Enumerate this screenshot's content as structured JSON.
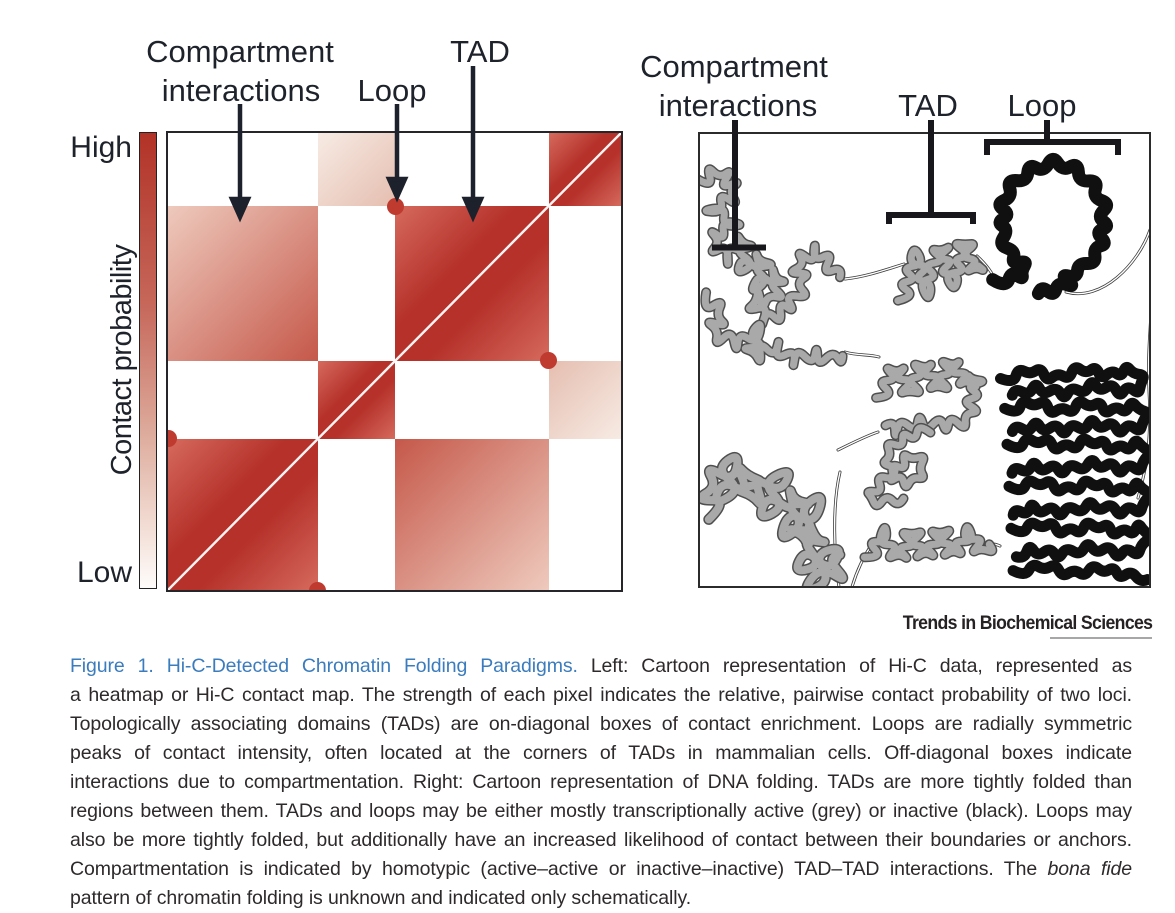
{
  "figure": {
    "left_panel": {
      "annotations": {
        "compartment_line1": "Compartment",
        "compartment_line2": "interactions",
        "loop": "Loop",
        "tad": "TAD"
      },
      "colorbar": {
        "high_label": "High",
        "low_label": "Low",
        "axis_label": "Contact probability",
        "gradient_top": "#b23227",
        "gradient_bottom": "#fefcfb"
      },
      "heatmap": {
        "segments": [
          {
            "id": "TAD1",
            "frac": 0.331
          },
          {
            "id": "TAD2",
            "frac": 0.171
          },
          {
            "id": "TAD3",
            "frac": 0.338
          },
          {
            "id": "TAD4",
            "frac": 0.16
          }
        ],
        "cells": [
          {
            "x": "TAD1",
            "y": "TAD1",
            "level": "high"
          },
          {
            "x": "TAD2",
            "y": "TAD2",
            "level": "high"
          },
          {
            "x": "TAD3",
            "y": "TAD3",
            "level": "high"
          },
          {
            "x": "TAD4",
            "y": "TAD4",
            "level": "high"
          },
          {
            "x": "TAD1",
            "y": "TAD3",
            "level": "medium"
          },
          {
            "x": "TAD3",
            "y": "TAD1",
            "level": "medium"
          },
          {
            "x": "TAD2",
            "y": "TAD4",
            "level": "low"
          },
          {
            "x": "TAD4",
            "y": "TAD2",
            "level": "low"
          }
        ],
        "levels": {
          "high": [
            "#b5312a",
            "#d66a5d"
          ],
          "medium": [
            "#c5584a",
            "#eecabd"
          ],
          "low": [
            "#e5beb0",
            "#f7ebe4"
          ]
        },
        "loops": [
          [
            0,
            0.331
          ],
          [
            0.331,
            0
          ],
          [
            0.502,
            0.84
          ],
          [
            0.84,
            0.502
          ]
        ],
        "loop_color": "#bf3a2f"
      }
    },
    "right_panel": {
      "annotations": {
        "compartment_line1": "Compartment",
        "compartment_line2": "interactions",
        "tad": "TAD",
        "loop": "Loop"
      },
      "colors": {
        "active_grey": "#a9a9a9",
        "inactive_black": "#101010"
      }
    },
    "journal_name": "Trends in Biochemical Sciences",
    "caption": {
      "heading": "Figure 1. Hi-C-Detected Chromatin Folding Paradigms.",
      "heading_color": "#3a7cbd",
      "line1_rest": " Left: Cartoon representation of Hi-C data, represented as",
      "line2": "a heatmap or Hi-C contact map. The strength of each pixel indicates the relative, pairwise contact probability of two loci.",
      "line3": "Topologically associating domains (TADs) are on-diagonal boxes of contact enrichment. Loops are radially symmetric",
      "line4": "peaks of contact intensity, often located at the corners of TADs in mammalian cells. Off-diagonal boxes indicate",
      "line5": "interactions due to compartmentation. Right: Cartoon representation of DNA folding. TADs are more tightly folded than",
      "line6": "regions between them. TADs and loops may be either mostly transcriptionally active (grey) or inactive (black). Loops may",
      "line7": "also be more tightly folded, but additionally have an increased likelihood of contact between their boundaries or anchors.",
      "line8_pre": "Compartmentation is indicated by homotypic (active–active or inactive–inactive) TAD–TAD interactions. The ",
      "line8_italic": "bona fide",
      "line9": "pattern of chromatin folding is unknown and indicated only schematically."
    }
  }
}
